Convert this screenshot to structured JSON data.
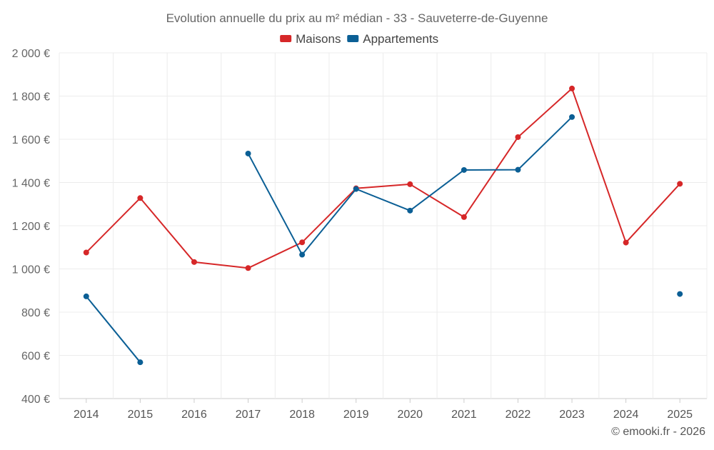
{
  "chart_data": {
    "type": "line",
    "title": "Evolution annuelle du prix au m² médian - 33 - Sauveterre-de-Guyenne",
    "xlabel": "",
    "ylabel": "",
    "categories": [
      "2014",
      "2015",
      "2016",
      "2017",
      "2018",
      "2019",
      "2020",
      "2021",
      "2022",
      "2023",
      "2024",
      "2025"
    ],
    "ylim": [
      400,
      2000
    ],
    "yticks": [
      400,
      600,
      800,
      1000,
      1200,
      1400,
      1600,
      1800,
      2000
    ],
    "ytick_labels": [
      "400 €",
      "600 €",
      "800 €",
      "1 000 €",
      "1 200 €",
      "1 400 €",
      "1 600 €",
      "1 800 €",
      "2 000 €"
    ],
    "grid": true,
    "legend_position": "top-center",
    "series": [
      {
        "name": "Maisons",
        "color": "#d62728",
        "values": [
          1076,
          1328,
          1032,
          1004,
          1123,
          1373,
          1392,
          1240,
          1610,
          1835,
          1122,
          1394
        ]
      },
      {
        "name": "Appartements",
        "color": "#0b5f95",
        "values": [
          873,
          568,
          null,
          1534,
          1066,
          1370,
          1270,
          1458,
          1459,
          1703,
          null,
          884
        ]
      }
    ]
  },
  "credit": "© emooki.fr - 2026"
}
